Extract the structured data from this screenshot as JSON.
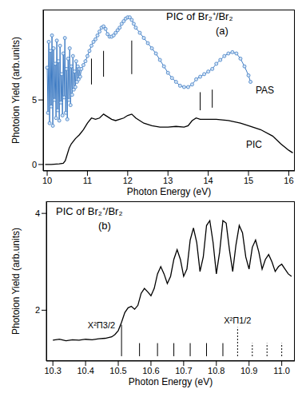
{
  "chart_data": [
    {
      "type": "line",
      "title": "PIC of Br₂⁺/Br₂",
      "subtitle": "(a)",
      "xlabel": "Photon Energy (eV)",
      "ylabel": "Photoion Yield (arb.units)",
      "xlim": [
        9.9,
        16.15
      ],
      "xticks": [
        10,
        11,
        12,
        13,
        14,
        15,
        16
      ],
      "ylim": [
        -0.5,
        12
      ],
      "yticks": [
        0,
        5
      ],
      "grid": false,
      "series": [
        {
          "name": "PAS",
          "color": "#3f7cc4",
          "marker": "circle",
          "line_style": "solid",
          "x": [
            10.0,
            10.02,
            10.04,
            10.06,
            10.08,
            10.1,
            10.12,
            10.14,
            10.16,
            10.18,
            10.2,
            10.22,
            10.24,
            10.26,
            10.28,
            10.3,
            10.32,
            10.34,
            10.36,
            10.38,
            10.4,
            10.42,
            10.44,
            10.46,
            10.48,
            10.5,
            10.52,
            10.54,
            10.56,
            10.58,
            10.6,
            10.62,
            10.64,
            10.66,
            10.68,
            10.7,
            10.72,
            10.74,
            10.76,
            10.78,
            10.8,
            10.82,
            10.85,
            10.9,
            10.95,
            11.0,
            11.05,
            11.1,
            11.15,
            11.2,
            11.25,
            11.3,
            11.35,
            11.4,
            11.45,
            11.5,
            11.55,
            11.6,
            11.65,
            11.7,
            11.75,
            11.8,
            11.85,
            11.9,
            11.95,
            12.0,
            12.05,
            12.1,
            12.15,
            12.2,
            12.3,
            12.4,
            12.5,
            12.6,
            12.7,
            12.8,
            12.9,
            13.0,
            13.1,
            13.2,
            13.3,
            13.4,
            13.5,
            13.6,
            13.7,
            13.8,
            13.9,
            14.0,
            14.1,
            14.2,
            14.3,
            14.4,
            14.5,
            14.6,
            14.7,
            14.8,
            14.9,
            15.0,
            15.05
          ],
          "values": [
            7.5,
            4.0,
            9.5,
            3.2,
            8.8,
            4.5,
            10.0,
            3.0,
            9.0,
            5.0,
            7.8,
            3.6,
            9.6,
            4.2,
            8.0,
            3.4,
            9.2,
            4.8,
            7.0,
            3.8,
            8.6,
            5.2,
            9.8,
            4.0,
            7.4,
            3.5,
            8.2,
            5.0,
            9.0,
            4.6,
            7.6,
            5.4,
            8.4,
            5.8,
            7.2,
            6.0,
            8.0,
            6.4,
            7.6,
            6.6,
            7.4,
            6.8,
            7.4,
            7.7,
            8.0,
            8.4,
            8.8,
            9.2,
            9.5,
            9.7,
            10.0,
            10.3,
            10.6,
            10.7,
            10.5,
            10.1,
            9.9,
            9.9,
            10.0,
            10.2,
            10.4,
            10.6,
            10.9,
            11.1,
            11.3,
            11.4,
            11.4,
            11.2,
            10.9,
            10.6,
            10.2,
            9.8,
            9.4,
            9.0,
            8.6,
            8.1,
            7.6,
            7.1,
            6.7,
            6.4,
            6.1,
            6.0,
            6.0,
            6.2,
            6.6,
            6.8,
            7.0,
            7.2,
            7.4,
            7.8,
            8.1,
            8.4,
            8.6,
            8.7,
            8.6,
            8.2,
            7.6,
            6.9,
            6.4
          ]
        },
        {
          "name": "PIC",
          "color": "#000000",
          "marker": "none",
          "line_style": "solid",
          "x": [
            9.95,
            10.1,
            10.3,
            10.4,
            10.45,
            10.5,
            10.55,
            10.6,
            10.7,
            10.8,
            10.9,
            11.0,
            11.1,
            11.2,
            11.3,
            11.4,
            11.5,
            11.6,
            11.7,
            11.8,
            11.9,
            12.0,
            12.1,
            12.2,
            12.3,
            12.4,
            12.6,
            12.8,
            13.0,
            13.2,
            13.4,
            13.5,
            13.6,
            13.7,
            13.8,
            14.0,
            14.2,
            14.5,
            14.8,
            15.0,
            15.3,
            15.6,
            15.8,
            16.0,
            16.1
          ],
          "values": [
            0.0,
            0.0,
            0.05,
            0.1,
            0.3,
            0.8,
            1.3,
            1.6,
            2.0,
            2.3,
            2.7,
            3.2,
            3.6,
            3.5,
            3.6,
            3.9,
            3.7,
            3.5,
            3.4,
            3.5,
            3.6,
            3.8,
            3.9,
            3.6,
            3.4,
            3.2,
            3.0,
            2.9,
            2.9,
            2.95,
            2.9,
            3.0,
            3.4,
            3.6,
            3.5,
            3.5,
            3.5,
            3.4,
            3.2,
            3.0,
            2.7,
            2.2,
            1.6,
            1.1,
            0.9
          ]
        }
      ],
      "assignment_lines": [
        {
          "x": 11.1,
          "y": [
            6.2,
            8.2
          ],
          "line_style": "solid"
        },
        {
          "x": 11.4,
          "y": [
            6.8,
            8.8
          ],
          "line_style": "solid"
        },
        {
          "x": 12.1,
          "y": [
            7.0,
            9.6
          ],
          "line_style": "solid"
        },
        {
          "x": 13.8,
          "y": [
            4.2,
            5.6
          ],
          "line_style": "solid"
        },
        {
          "x": 14.1,
          "y": [
            4.4,
            5.8
          ],
          "line_style": "solid"
        }
      ]
    },
    {
      "type": "line",
      "title": "PIC of Br₂⁺/Br₂",
      "subtitle": "(b)",
      "xlabel": "Photon Energy (eV)",
      "ylabel": "Photoion Yield (arb.units)",
      "xlim": [
        10.28,
        11.04
      ],
      "xticks": [
        10.3,
        10.4,
        10.5,
        10.6,
        10.7,
        10.8,
        10.9,
        {
          "value": 11,
          "label": "11.0"
        }
      ],
      "ylim": [
        0.95,
        4.25
      ],
      "yticks": [
        2,
        4
      ],
      "grid": false,
      "series": [
        {
          "name": "PIC",
          "color": "#000000",
          "marker": "none",
          "line_style": "solid",
          "x": [
            10.3,
            10.32,
            10.34,
            10.36,
            10.38,
            10.4,
            10.42,
            10.44,
            10.46,
            10.48,
            10.49,
            10.5,
            10.51,
            10.52,
            10.53,
            10.54,
            10.55,
            10.56,
            10.57,
            10.58,
            10.59,
            10.6,
            10.61,
            10.62,
            10.63,
            10.64,
            10.65,
            10.66,
            10.67,
            10.68,
            10.69,
            10.7,
            10.71,
            10.72,
            10.73,
            10.74,
            10.75,
            10.76,
            10.77,
            10.78,
            10.79,
            10.8,
            10.81,
            10.82,
            10.83,
            10.84,
            10.85,
            10.86,
            10.87,
            10.88,
            10.89,
            10.9,
            10.91,
            10.92,
            10.93,
            10.94,
            10.95,
            10.96,
            10.97,
            10.98,
            10.99,
            11.0,
            11.01,
            11.02,
            11.03
          ],
          "values": [
            1.38,
            1.4,
            1.37,
            1.39,
            1.38,
            1.4,
            1.39,
            1.41,
            1.42,
            1.45,
            1.5,
            1.58,
            1.75,
            1.95,
            2.05,
            2.08,
            2.02,
            2.1,
            2.35,
            2.45,
            2.38,
            2.3,
            2.45,
            2.75,
            2.9,
            2.75,
            2.55,
            2.7,
            3.05,
            3.25,
            3.05,
            2.7,
            2.85,
            3.45,
            3.7,
            3.4,
            2.8,
            3.1,
            3.75,
            3.85,
            3.4,
            2.75,
            3.2,
            3.85,
            3.8,
            3.25,
            2.8,
            3.35,
            3.75,
            3.6,
            3.1,
            2.85,
            3.3,
            3.45,
            3.2,
            2.85,
            3.05,
            3.15,
            3.0,
            2.8,
            2.9,
            2.95,
            2.85,
            2.75,
            2.7
          ]
        }
      ],
      "assignment_lines": [
        {
          "x": 10.51,
          "y": [
            1.05,
            1.7
          ],
          "line_style": "solid",
          "label": "X²Π3/2"
        },
        {
          "x": 10.565,
          "y": [
            1.05,
            1.32
          ],
          "line_style": "solid"
        },
        {
          "x": 10.62,
          "y": [
            1.05,
            1.32
          ],
          "line_style": "solid"
        },
        {
          "x": 10.67,
          "y": [
            1.05,
            1.32
          ],
          "line_style": "solid"
        },
        {
          "x": 10.72,
          "y": [
            1.05,
            1.32
          ],
          "line_style": "solid"
        },
        {
          "x": 10.77,
          "y": [
            1.05,
            1.32
          ],
          "line_style": "solid"
        },
        {
          "x": 10.82,
          "y": [
            1.05,
            1.32
          ],
          "line_style": "solid"
        },
        {
          "x": 10.865,
          "y": [
            1.05,
            1.65
          ],
          "line_style": "dashed",
          "label": "X²Π1/2"
        },
        {
          "x": 10.91,
          "y": [
            1.05,
            1.32
          ],
          "line_style": "dashed"
        },
        {
          "x": 10.955,
          "y": [
            1.05,
            1.32
          ],
          "line_style": "dashed"
        },
        {
          "x": 11.0,
          "y": [
            1.05,
            1.32
          ],
          "line_style": "dashed"
        }
      ]
    }
  ]
}
